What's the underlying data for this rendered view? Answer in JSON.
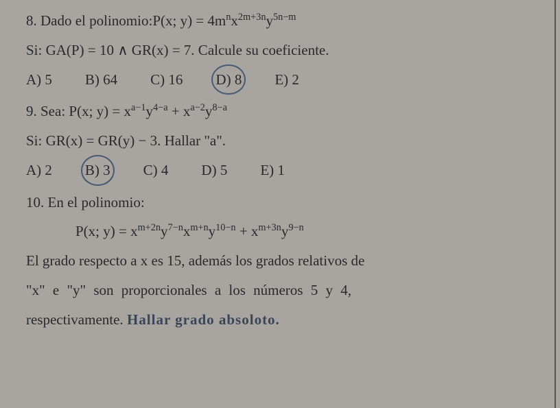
{
  "q8": {
    "text_prefix": "8. Dado el polinomio:",
    "poly_lhs": "P(x; y) = 4m",
    "exp1": "n",
    "mid1": "x",
    "exp2": "2m+3n",
    "mid2": "y",
    "exp3": "5n−m",
    "cond": "Si: GA(P) = 10 ∧ GR(x) = 7. Calcule su coeficiente.",
    "options": {
      "A": "A) 5",
      "B": "B) 64",
      "C": "C) 16",
      "D": "D) 8",
      "E": "E) 2"
    },
    "circled": "D"
  },
  "q9": {
    "text_prefix": "9. Sea: ",
    "poly_lhs": "P(x; y) = x",
    "e1": "a−1",
    "m1": "y",
    "e2": "4−a",
    "plus": " + x",
    "e3": "a−2",
    "m2": "y",
    "e4": "8−a",
    "cond": "Si: GR(x) = GR(y) − 3. Hallar \"a\".",
    "options": {
      "A": "A) 2",
      "B": "B) 3",
      "C": "C) 4",
      "D": "D) 5",
      "E": "E) 1"
    },
    "circled": "B"
  },
  "q10": {
    "text": "10. En el polinomio:",
    "poly_lhs": "P(x; y) = x",
    "e1": "m+2n",
    "m1": "y",
    "e2": "7−n",
    "m2": "x",
    "e3": "m+n",
    "m3": "y",
    "e4": "10−n",
    "plus": " + x",
    "e5": "m+3n",
    "m4": "y",
    "e6": "9−n",
    "para1": "El grado respecto a x es 15, además los grados relativos de",
    "para2": "\"x\"  e  \"y\"  son  proporcionales  a  los  números  5  y  4,",
    "para3_prefix": "respectivamente. ",
    "hand": "Hallar  grado  absoloto."
  },
  "colors": {
    "bg": "#a8a4a0",
    "text": "#2a2a2a",
    "circle": "#4a5a72",
    "hand": "#3a4558"
  }
}
